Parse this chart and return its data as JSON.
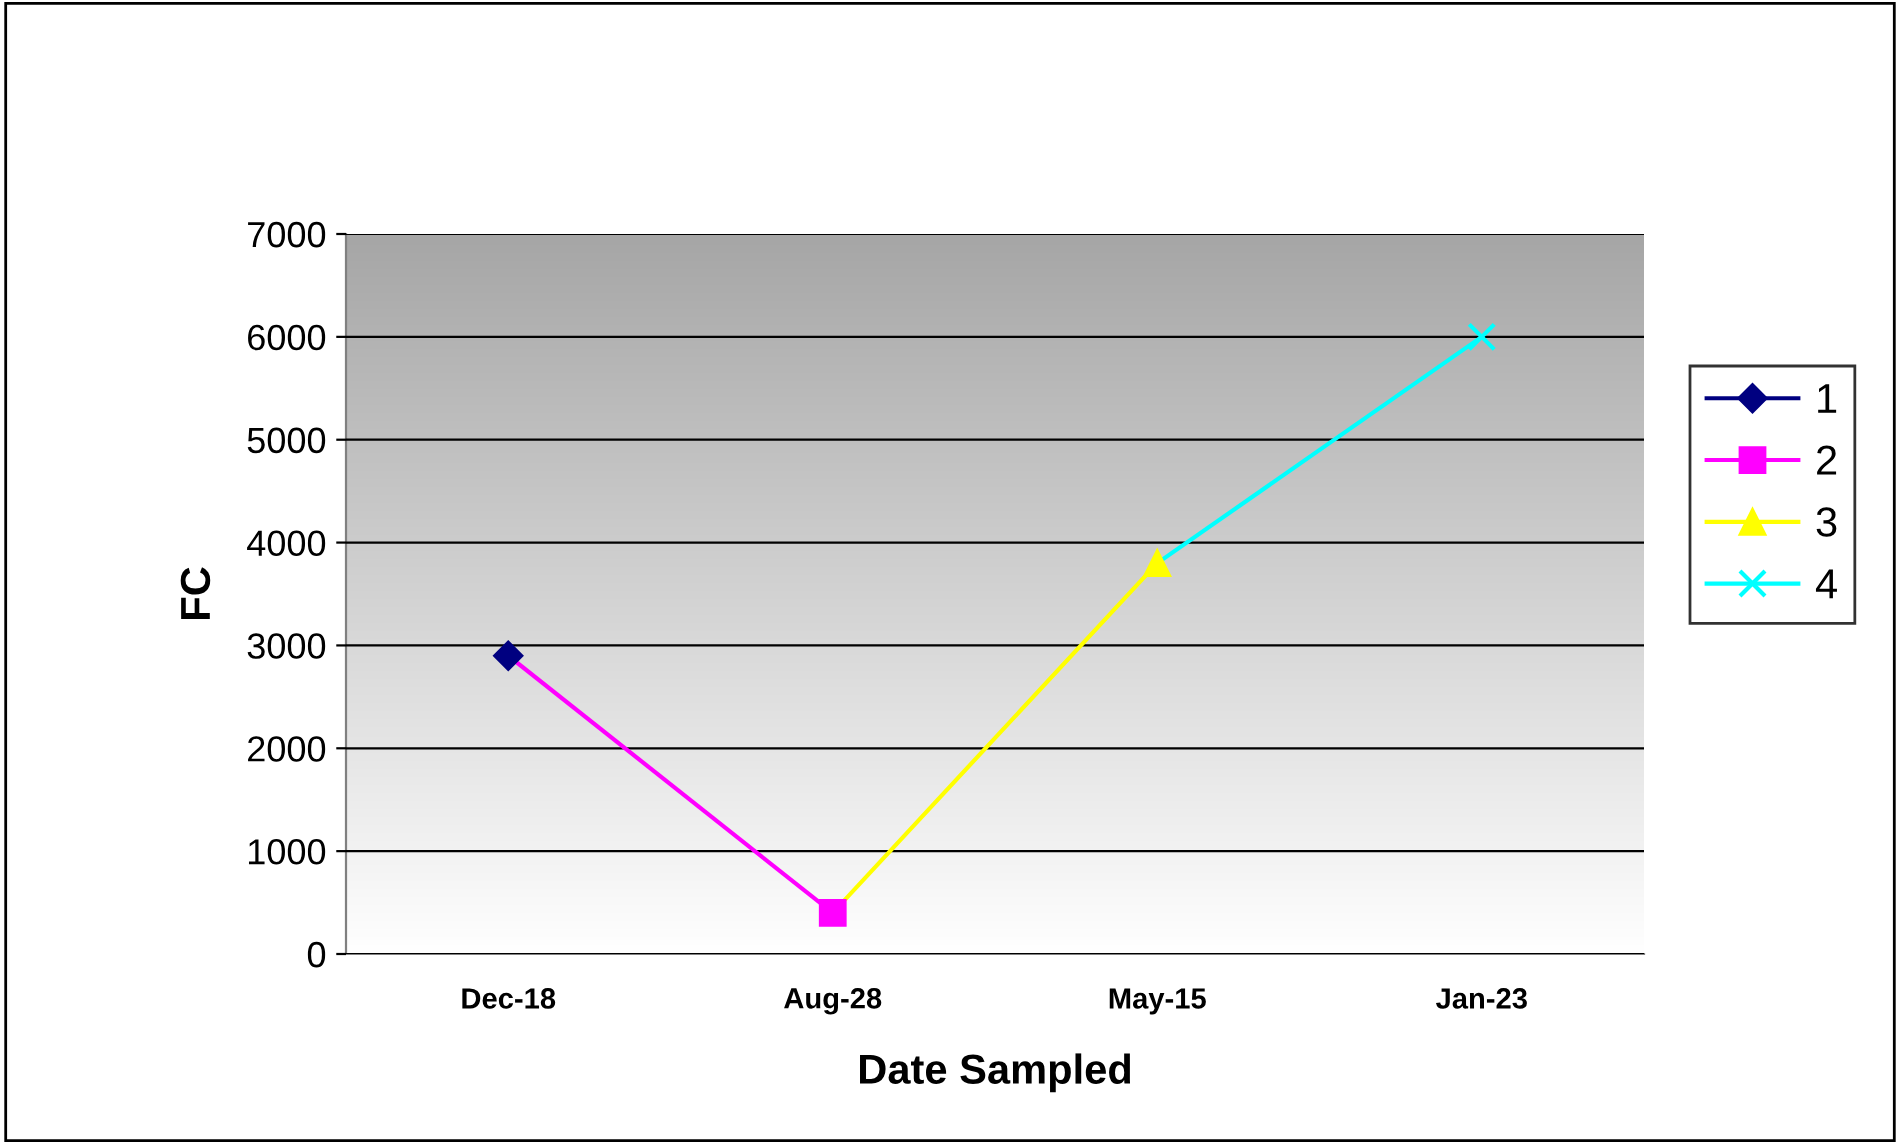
{
  "chart_data": {
    "type": "line",
    "xlabel": "Date Sampled",
    "ylabel": "FC",
    "categories": [
      "Dec-18",
      "Aug-28",
      "May-15",
      "Jan-23"
    ],
    "series": [
      {
        "name": "1",
        "color": "#000080",
        "marker": "diamond",
        "values": [
          2900,
          null,
          null,
          null
        ]
      },
      {
        "name": "2",
        "color": "#ff00ff",
        "marker": "square",
        "values": [
          2900,
          400,
          null,
          null
        ]
      },
      {
        "name": "3",
        "color": "#ffff00",
        "marker": "triangle",
        "values": [
          null,
          400,
          3800,
          null
        ]
      },
      {
        "name": "4",
        "color": "#00ffff",
        "marker": "cross",
        "values": [
          null,
          null,
          3800,
          6000
        ]
      }
    ],
    "ylim": [
      0,
      7000
    ],
    "yticks": [
      0,
      1000,
      2000,
      3000,
      4000,
      5000,
      6000,
      7000
    ],
    "grid": "y",
    "legend": "right"
  }
}
